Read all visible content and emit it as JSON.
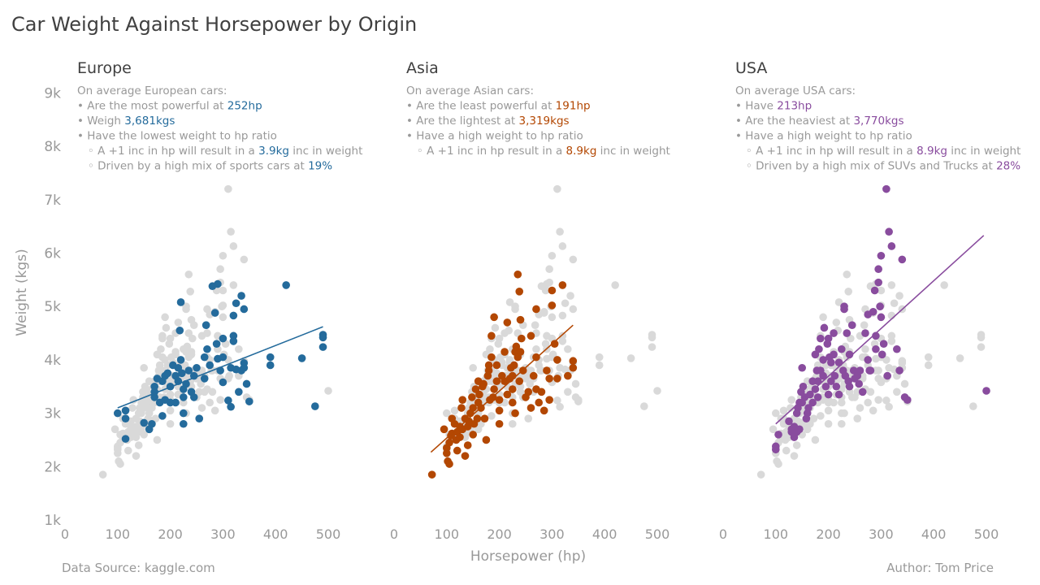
{
  "title": "Car Weight Against Horsepower by Origin",
  "footer": {
    "source": "Data Source: kaggle.com",
    "author": "Author: Tom Price"
  },
  "colors": {
    "europe": "#246b9c",
    "asia": "#b34702",
    "usa": "#894c9e",
    "background_points": "#d9d9d9",
    "text_muted": "#999999",
    "title": "#404040"
  },
  "chart_data": [
    {
      "type": "scatter",
      "panel": "Europe",
      "title": "Europe",
      "xlabel": "",
      "ylabel": "Weight (kgs)",
      "xlim": [
        0,
        500
      ],
      "ylim": [
        1000,
        9000
      ],
      "x_ticks": [
        0,
        100,
        200,
        300,
        400,
        500
      ],
      "y_ticks": [
        1000,
        2000,
        3000,
        4000,
        5000,
        6000,
        7000,
        8000,
        9000
      ],
      "y_tick_labels": [
        "1k",
        "2k",
        "3k",
        "4k",
        "5k",
        "6k",
        "7k",
        "8k",
        "9k"
      ],
      "grid": false,
      "annotation": [
        [
          {
            "t": "On average European cars:"
          }
        ],
        [
          {
            "t": "• Are the most powerful at "
          },
          {
            "t": "252hp",
            "hl": true
          }
        ],
        [
          {
            "t": "• Weigh "
          },
          {
            "t": "3,681kgs",
            "hl": true
          }
        ],
        [
          {
            "t": "• Have the lowest weight to hp ratio"
          }
        ],
        [
          {
            "t": "   ◦ A +1 inc in hp will result in a "
          },
          {
            "t": "3.9kg",
            "hl": true
          },
          {
            "t": " inc in weight"
          }
        ],
        [
          {
            "t": "   ◦ Driven by a high mix of sports cars at "
          },
          {
            "t": "19%",
            "hl": true
          }
        ]
      ],
      "trend": {
        "x": [
          100,
          490
        ],
        "y": [
          3100,
          4620
        ]
      },
      "points": [
        [
          100,
          3000
        ],
        [
          115,
          3050
        ],
        [
          115,
          2900
        ],
        [
          115,
          2520
        ],
        [
          150,
          2820
        ],
        [
          160,
          2700
        ],
        [
          165,
          2800
        ],
        [
          170,
          3300
        ],
        [
          170,
          3400
        ],
        [
          170,
          3500
        ],
        [
          175,
          3650
        ],
        [
          180,
          3200
        ],
        [
          185,
          3600
        ],
        [
          185,
          2950
        ],
        [
          190,
          3700
        ],
        [
          190,
          3250
        ],
        [
          195,
          3750
        ],
        [
          200,
          3200
        ],
        [
          200,
          3500
        ],
        [
          205,
          3900
        ],
        [
          210,
          3200
        ],
        [
          210,
          3700
        ],
        [
          215,
          3600
        ],
        [
          215,
          3850
        ],
        [
          218,
          4550
        ],
        [
          220,
          5080
        ],
        [
          220,
          4000
        ],
        [
          222,
          3750
        ],
        [
          225,
          3300
        ],
        [
          225,
          3000
        ],
        [
          225,
          2800
        ],
        [
          225,
          3450
        ],
        [
          230,
          3550
        ],
        [
          235,
          3800
        ],
        [
          240,
          3400
        ],
        [
          245,
          3300
        ],
        [
          245,
          3700
        ],
        [
          250,
          3850
        ],
        [
          255,
          2900
        ],
        [
          265,
          3650
        ],
        [
          265,
          4050
        ],
        [
          268,
          4650
        ],
        [
          270,
          4200
        ],
        [
          275,
          3900
        ],
        [
          280,
          5380
        ],
        [
          285,
          4880
        ],
        [
          288,
          4300
        ],
        [
          290,
          4020
        ],
        [
          290,
          5420
        ],
        [
          295,
          3800
        ],
        [
          300,
          3580
        ],
        [
          300,
          4050
        ],
        [
          300,
          4400
        ],
        [
          310,
          3240
        ],
        [
          315,
          3120
        ],
        [
          315,
          3850
        ],
        [
          320,
          4830
        ],
        [
          320,
          4450
        ],
        [
          320,
          4350
        ],
        [
          325,
          3820
        ],
        [
          325,
          5060
        ],
        [
          330,
          3400
        ],
        [
          335,
          3800
        ],
        [
          335,
          5200
        ],
        [
          340,
          4950
        ],
        [
          340,
          3940
        ],
        [
          340,
          3850
        ],
        [
          345,
          3550
        ],
        [
          350,
          3220
        ],
        [
          390,
          4050
        ],
        [
          390,
          3900
        ],
        [
          420,
          5400
        ],
        [
          450,
          4030
        ],
        [
          490,
          4470
        ],
        [
          490,
          4420
        ],
        [
          490,
          4240
        ],
        [
          475,
          3130
        ]
      ]
    },
    {
      "type": "scatter",
      "panel": "Asia",
      "title": "Asia",
      "xlabel": "Horsepower (hp)",
      "ylabel": "",
      "xlim": [
        0,
        500
      ],
      "ylim": [
        1000,
        9000
      ],
      "x_ticks": [
        0,
        100,
        200,
        300,
        400,
        500
      ],
      "grid": false,
      "annotation": [
        [
          {
            "t": "On average Asian cars:"
          }
        ],
        [
          {
            "t": "• Are the least powerful at "
          },
          {
            "t": "191hp",
            "hl": true
          }
        ],
        [
          {
            "t": "• Are the lightest at "
          },
          {
            "t": "3,319kgs",
            "hl": true
          }
        ],
        [
          {
            "t": "• Have a high weight to hp ratio"
          }
        ],
        [
          {
            "t": "   ◦ A +1 inc in hp result in a "
          },
          {
            "t": "8.9kg",
            "hl": true
          },
          {
            "t": " inc in weight"
          }
        ]
      ],
      "trend": {
        "x": [
          70,
          340
        ],
        "y": [
          2270,
          4650
        ]
      },
      "points": [
        [
          72,
          1850
        ],
        [
          95,
          2700
        ],
        [
          100,
          2350
        ],
        [
          100,
          2250
        ],
        [
          102,
          2100
        ],
        [
          105,
          2050
        ],
        [
          105,
          2450
        ],
        [
          108,
          2580
        ],
        [
          110,
          2620
        ],
        [
          110,
          2900
        ],
        [
          115,
          2800
        ],
        [
          118,
          2500
        ],
        [
          120,
          2650
        ],
        [
          120,
          2300
        ],
        [
          125,
          2750
        ],
        [
          125,
          2550
        ],
        [
          128,
          3100
        ],
        [
          130,
          2700
        ],
        [
          130,
          3250
        ],
        [
          135,
          2900
        ],
        [
          135,
          2200
        ],
        [
          140,
          2400
        ],
        [
          140,
          2750
        ],
        [
          142,
          2850
        ],
        [
          145,
          3000
        ],
        [
          148,
          3300
        ],
        [
          150,
          2600
        ],
        [
          150,
          3100
        ],
        [
          152,
          2800
        ],
        [
          155,
          3450
        ],
        [
          158,
          2900
        ],
        [
          160,
          3200
        ],
        [
          160,
          3600
        ],
        [
          162,
          3350
        ],
        [
          165,
          3100
        ],
        [
          168,
          3500
        ],
        [
          170,
          3550
        ],
        [
          172,
          2900
        ],
        [
          175,
          2500
        ],
        [
          178,
          3700
        ],
        [
          180,
          3800
        ],
        [
          180,
          3900
        ],
        [
          182,
          3250
        ],
        [
          185,
          4050
        ],
        [
          185,
          4450
        ],
        [
          188,
          3300
        ],
        [
          190,
          4800
        ],
        [
          190,
          3450
        ],
        [
          195,
          3600
        ],
        [
          195,
          3900
        ],
        [
          200,
          3050
        ],
        [
          200,
          3250
        ],
        [
          200,
          2800
        ],
        [
          205,
          3700
        ],
        [
          210,
          3600
        ],
        [
          210,
          4150
        ],
        [
          215,
          3350
        ],
        [
          215,
          4700
        ],
        [
          220,
          3650
        ],
        [
          222,
          3850
        ],
        [
          225,
          3200
        ],
        [
          225,
          3700
        ],
        [
          228,
          3900
        ],
        [
          230,
          4150
        ],
        [
          230,
          3000
        ],
        [
          232,
          4250
        ],
        [
          235,
          4050
        ],
        [
          235,
          5600
        ],
        [
          238,
          3600
        ],
        [
          240,
          4750
        ],
        [
          240,
          4150
        ],
        [
          242,
          4400
        ],
        [
          245,
          3800
        ],
        [
          250,
          3300
        ],
        [
          255,
          3400
        ],
        [
          260,
          3100
        ],
        [
          260,
          4450
        ],
        [
          265,
          3700
        ],
        [
          270,
          3450
        ],
        [
          270,
          4950
        ],
        [
          275,
          3200
        ],
        [
          280,
          3400
        ],
        [
          285,
          3050
        ],
        [
          290,
          3800
        ],
        [
          295,
          3250
        ],
        [
          300,
          5300
        ],
        [
          300,
          5020
        ],
        [
          305,
          4300
        ],
        [
          310,
          3650
        ],
        [
          310,
          4000
        ],
        [
          320,
          5400
        ],
        [
          330,
          3700
        ],
        [
          340,
          3850
        ],
        [
          340,
          3980
        ],
        [
          238,
          5280
        ],
        [
          270,
          4050
        ],
        [
          295,
          3650
        ],
        [
          225,
          3450
        ]
      ]
    },
    {
      "type": "scatter",
      "panel": "USA",
      "title": "USA",
      "xlabel": "",
      "ylabel": "",
      "xlim": [
        0,
        500
      ],
      "ylim": [
        1000,
        9000
      ],
      "x_ticks": [
        0,
        100,
        200,
        300,
        400,
        500
      ],
      "grid": false,
      "annotation": [
        [
          {
            "t": "On average USA cars:"
          }
        ],
        [
          {
            "t": "• Have "
          },
          {
            "t": "213hp",
            "hl": true
          }
        ],
        [
          {
            "t": "• Are the heaviest at "
          },
          {
            "t": "3,770kgs",
            "hl": true
          }
        ],
        [
          {
            "t": "• Have a high weight to hp ratio"
          }
        ],
        [
          {
            "t": "   ◦ A +1 inc in hp will result in a "
          },
          {
            "t": "8.9kg",
            "hl": true
          },
          {
            "t": " inc in weight"
          }
        ],
        [
          {
            "t": "   ◦ Driven by a high mix of SUVs and Trucks at "
          },
          {
            "t": "28%",
            "hl": true
          }
        ]
      ],
      "trend": {
        "x": [
          100,
          495
        ],
        "y": [
          2800,
          6330
        ]
      },
      "points": [
        [
          100,
          2380
        ],
        [
          100,
          2320
        ],
        [
          105,
          2600
        ],
        [
          125,
          2850
        ],
        [
          130,
          2650
        ],
        [
          130,
          2700
        ],
        [
          135,
          2550
        ],
        [
          135,
          2750
        ],
        [
          140,
          3000
        ],
        [
          140,
          2650
        ],
        [
          142,
          3100
        ],
        [
          145,
          3200
        ],
        [
          145,
          2700
        ],
        [
          148,
          3400
        ],
        [
          150,
          3850
        ],
        [
          150,
          3200
        ],
        [
          152,
          3500
        ],
        [
          155,
          3300
        ],
        [
          158,
          2900
        ],
        [
          160,
          3000
        ],
        [
          162,
          3100
        ],
        [
          165,
          3350
        ],
        [
          170,
          3600
        ],
        [
          170,
          3200
        ],
        [
          175,
          3450
        ],
        [
          175,
          4100
        ],
        [
          178,
          3800
        ],
        [
          180,
          3300
        ],
        [
          180,
          3600
        ],
        [
          182,
          4200
        ],
        [
          185,
          4400
        ],
        [
          185,
          3800
        ],
        [
          190,
          3700
        ],
        [
          190,
          4000
        ],
        [
          192,
          4600
        ],
        [
          195,
          3500
        ],
        [
          198,
          4300
        ],
        [
          200,
          4400
        ],
        [
          200,
          3350
        ],
        [
          202,
          4050
        ],
        [
          205,
          3950
        ],
        [
          205,
          3600
        ],
        [
          210,
          4100
        ],
        [
          210,
          4500
        ],
        [
          212,
          3700
        ],
        [
          215,
          3500
        ],
        [
          220,
          3350
        ],
        [
          220,
          3950
        ],
        [
          225,
          4200
        ],
        [
          228,
          3800
        ],
        [
          230,
          5000
        ],
        [
          230,
          4950
        ],
        [
          232,
          3700
        ],
        [
          235,
          4500
        ],
        [
          238,
          3600
        ],
        [
          240,
          4100
        ],
        [
          240,
          3500
        ],
        [
          245,
          4650
        ],
        [
          248,
          3800
        ],
        [
          250,
          3650
        ],
        [
          255,
          3700
        ],
        [
          258,
          3550
        ],
        [
          260,
          3800
        ],
        [
          265,
          3400
        ],
        [
          270,
          4500
        ],
        [
          275,
          4850
        ],
        [
          275,
          4000
        ],
        [
          278,
          3800
        ],
        [
          280,
          3800
        ],
        [
          285,
          4900
        ],
        [
          288,
          5300
        ],
        [
          290,
          4200
        ],
        [
          290,
          4450
        ],
        [
          295,
          5700
        ],
        [
          295,
          5450
        ],
        [
          298,
          5000
        ],
        [
          300,
          5950
        ],
        [
          300,
          4800
        ],
        [
          302,
          4100
        ],
        [
          305,
          4300
        ],
        [
          310,
          7200
        ],
        [
          312,
          3700
        ],
        [
          315,
          6400
        ],
        [
          320,
          6130
        ],
        [
          330,
          4200
        ],
        [
          335,
          3800
        ],
        [
          340,
          5880
        ],
        [
          345,
          3300
        ],
        [
          350,
          3250
        ],
        [
          500,
          3420
        ]
      ]
    }
  ]
}
